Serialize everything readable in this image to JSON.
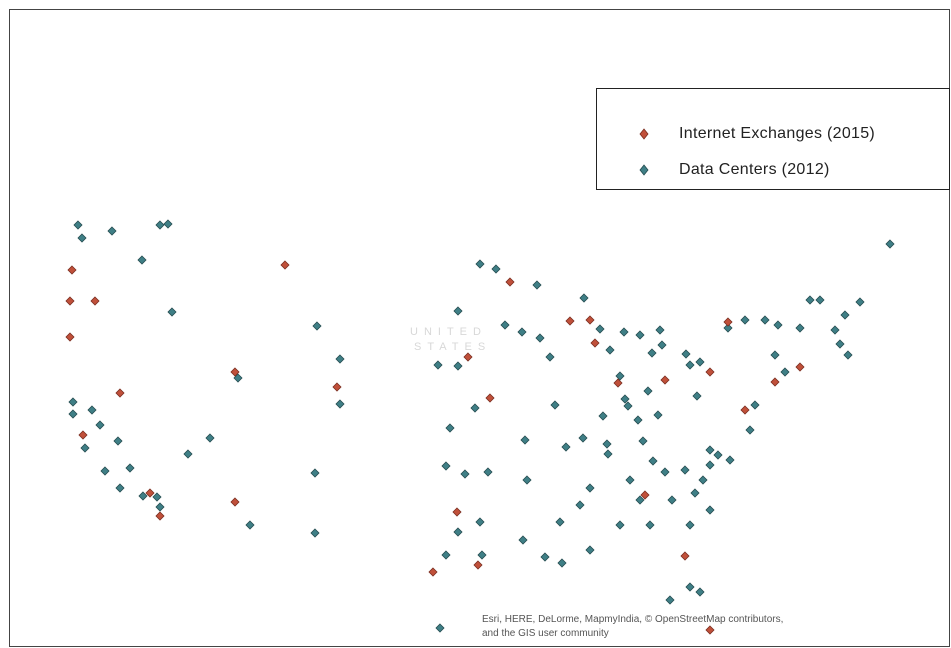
{
  "legend": {
    "items": [
      {
        "label": "Internet Exchanges (2015)",
        "color": "#c0503a",
        "icon": "diamond-marker-icon"
      },
      {
        "label": "Data Centers (2012)",
        "color": "#3f7f86",
        "icon": "diamond-marker-icon"
      }
    ]
  },
  "basemap_labels": {
    "line1": "UNITED",
    "line2": "STATES"
  },
  "attribution": {
    "line1": "Esri, HERE, DeLorme, MapmyIndia, © OpenStreetMap contributors,",
    "line2": "and the GIS user community"
  }
}
